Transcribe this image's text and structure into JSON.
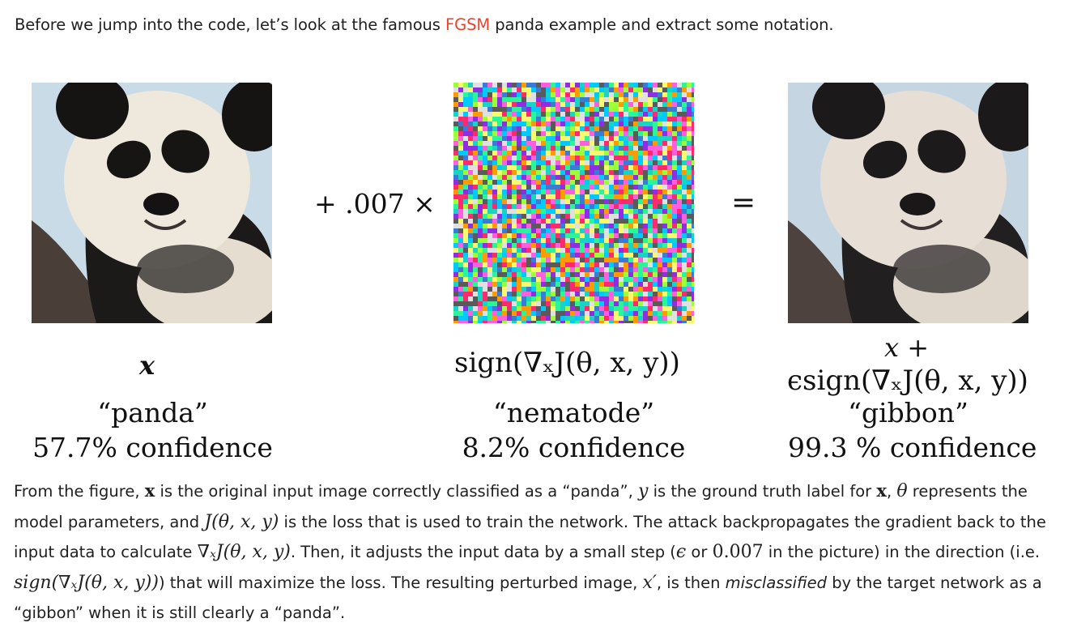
{
  "intro": {
    "before": "Before we jump into the code, let’s look at the famous ",
    "link": "FGSM",
    "after": " panda example and extract some notation."
  },
  "figure": {
    "op_plus": "+ .007 ×",
    "op_eq": "=",
    "left": {
      "math": "x",
      "class": "“panda”",
      "confidence": "57.7% confidence"
    },
    "middle": {
      "math": "sign(∇ₓJ(θ, x, y))",
      "class": "“nematode”",
      "confidence": "8.2% confidence"
    },
    "right": {
      "math_line1": "x +",
      "math_line2": "ϵsign(∇ₓJ(θ, x, y))",
      "class": "“gibbon”",
      "confidence": "99.3 % confidence"
    }
  },
  "paragraph": {
    "t1": "From the figure, ",
    "x1": "x",
    "t2": " is the original input image correctly classified as a “panda”, ",
    "y1": "y",
    "t3": " is the ground truth label for ",
    "x2": "x",
    "t4": ", ",
    "theta": "θ",
    "t5": " represents the model parameters, and ",
    "J1": "J(θ, x, y)",
    "t6": " is the loss that is used to train the network. The attack backpropagates the gradient back to the input data to calculate ",
    "grad": "∇ₓJ(θ, x, y)",
    "t7": ". Then, it adjusts the input data by a small step (",
    "eps": "ϵ",
    "t8": " or ",
    "val": "0.007",
    "t9": " in the picture) in the direction (i.e. ",
    "sign": "sign(∇ₓJ(θ, x, y))",
    "t10": ") that will maximize the loss. The resulting perturbed image, ",
    "xprime": "x′",
    "t11": ", is then ",
    "mis": "misclassified",
    "t12": " by the target network as a “gibbon” when it is still clearly a “panda”."
  }
}
